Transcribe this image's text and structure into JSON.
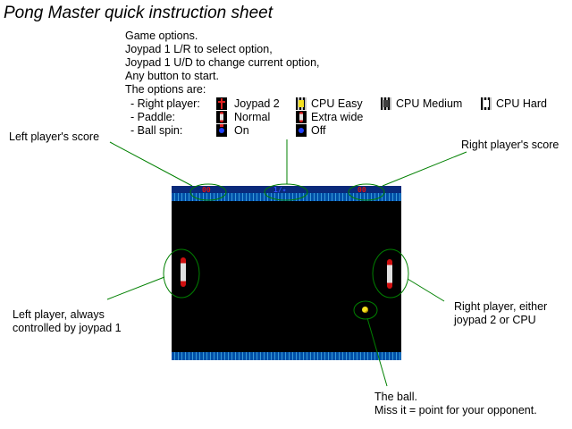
{
  "title": "Pong Master quick instruction sheet",
  "instructions": {
    "line1": "Game options.",
    "line2": "Joypad 1 L/R to select option,",
    "line3": "Joypad 1 U/D to change current option,",
    "line4": "Any button to start.",
    "line5": "The options are:"
  },
  "options": {
    "right_player": {
      "label": "- Right player:",
      "choices": [
        "Joypad 2",
        "CPU Easy",
        "CPU Medium",
        "CPU Hard"
      ]
    },
    "paddle": {
      "label": "- Paddle:",
      "choices": [
        "Normal",
        "Extra wide"
      ]
    },
    "ball_spin": {
      "label": "- Ball spin:",
      "choices": [
        "On",
        "Off"
      ]
    }
  },
  "callouts": {
    "left_score": "Left player's score",
    "right_score": "Right player's score",
    "left_player_1": "Left player, always",
    "left_player_2": "controlled by joypad 1",
    "right_player_1": "Right player, either",
    "right_player_2": "joypad 2 or CPU",
    "ball_1": "The ball.",
    "ball_2": "Miss it = point for your opponent."
  },
  "game": {
    "left_score": "00",
    "right_score": "00"
  },
  "colors": {
    "callout_lines": "#008000",
    "border": "#0050a8",
    "paddle_tip": "#d01010",
    "ball": "#f4e020",
    "score": "#e01010"
  }
}
